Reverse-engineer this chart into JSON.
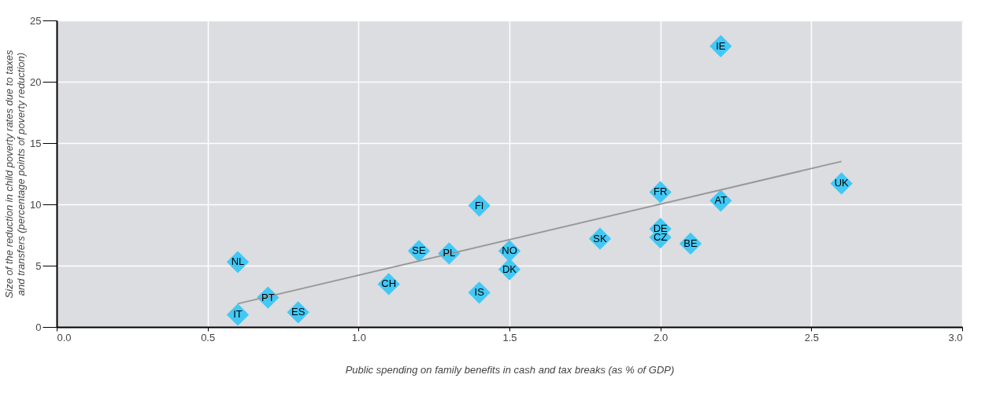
{
  "chart_data": {
    "type": "scatter",
    "xlabel": "Public spending on family benefits in cash and tax breaks (as % of GDP)",
    "ylabel": "Size of the reduction in child poverty rates due to taxes and transfers (percentage points of poverty reduction)",
    "xlim": [
      0,
      3
    ],
    "ylim": [
      0,
      25
    ],
    "xticks": [
      {
        "value": 0,
        "label": "0.0"
      },
      {
        "value": 0.5,
        "label": "0.5"
      },
      {
        "value": 1,
        "label": "1.0"
      },
      {
        "value": 1.5,
        "label": "1.5"
      },
      {
        "value": 2,
        "label": "2.0"
      },
      {
        "value": 2.5,
        "label": "2.5"
      },
      {
        "value": 3,
        "label": "3.0"
      }
    ],
    "yticks": [
      0,
      5,
      10,
      15,
      20,
      25
    ],
    "grid": true,
    "series": [
      {
        "color": "#42c8f5",
        "marker": "diamond",
        "x": [
          2.2,
          2.6,
          2.0,
          2.2,
          2.0,
          2.0,
          2.1,
          1.8,
          1.4,
          1.5,
          1.5,
          1.2,
          1.3,
          1.4,
          1.1,
          0.6,
          0.7,
          0.6,
          0.8
        ],
        "values": [
          22.9,
          11.7,
          11.0,
          10.3,
          8.0,
          7.3,
          6.8,
          7.2,
          9.9,
          6.2,
          4.7,
          6.2,
          6.0,
          2.8,
          3.5,
          5.3,
          2.4,
          1.0,
          1.2
        ]
      },
      {
        "type": "line",
        "marker": "none",
        "color": "#999999",
        "x": [
          0.6,
          2.6
        ],
        "values": [
          1.9,
          13.5
        ]
      }
    ],
    "annotations": [
      {
        "text": "IE",
        "x": 2.2,
        "y": 22.9
      },
      {
        "text": "UK",
        "x": 2.6,
        "y": 11.7
      },
      {
        "text": "FR",
        "x": 2.0,
        "y": 11.0
      },
      {
        "text": "AT",
        "x": 2.2,
        "y": 10.3
      },
      {
        "text": "DE",
        "x": 2.0,
        "y": 8.0
      },
      {
        "text": "CZ",
        "x": 2.0,
        "y": 7.3
      },
      {
        "text": "BE",
        "x": 2.1,
        "y": 6.8
      },
      {
        "text": "SK",
        "x": 1.8,
        "y": 7.2
      },
      {
        "text": "FI",
        "x": 1.4,
        "y": 9.9
      },
      {
        "text": "NO",
        "x": 1.5,
        "y": 6.2
      },
      {
        "text": "DK",
        "x": 1.5,
        "y": 4.7
      },
      {
        "text": "SE",
        "x": 1.2,
        "y": 6.2
      },
      {
        "text": "PL",
        "x": 1.3,
        "y": 6.0
      },
      {
        "text": "IS",
        "x": 1.4,
        "y": 2.8
      },
      {
        "text": "CH",
        "x": 1.1,
        "y": 3.5
      },
      {
        "text": "NL",
        "x": 0.6,
        "y": 5.3
      },
      {
        "text": "PT",
        "x": 0.7,
        "y": 2.4
      },
      {
        "text": "IT",
        "x": 0.6,
        "y": 1.0
      },
      {
        "text": "ES",
        "x": 0.8,
        "y": 1.2
      }
    ]
  }
}
